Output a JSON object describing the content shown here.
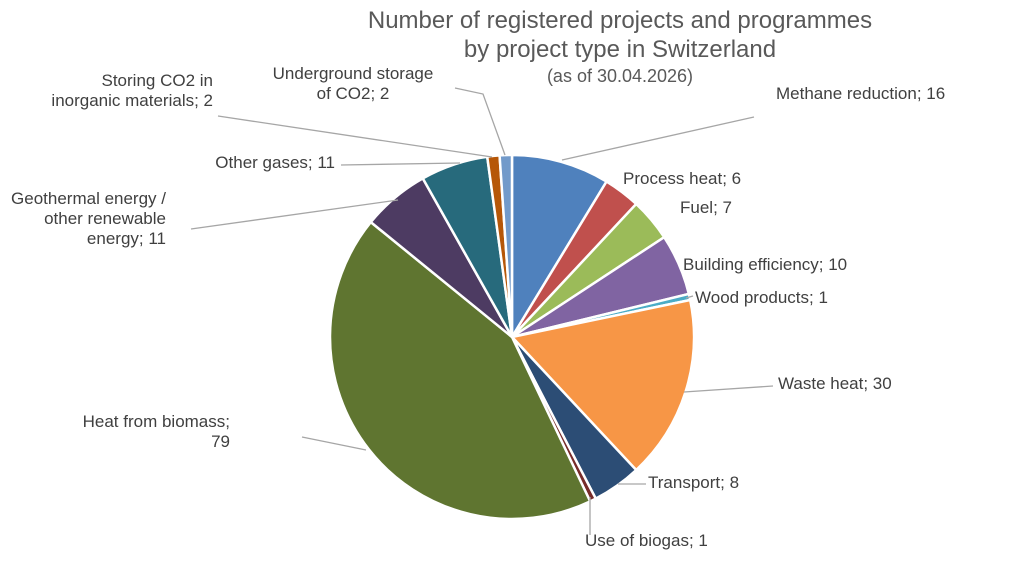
{
  "chart_data": {
    "type": "pie",
    "title": "Number of registered projects and programmes by project type in Switzerland",
    "title_lines": [
      "Number of registered projects and programmes",
      "by project type in Switzerland"
    ],
    "subtitle": "(as of 30.04.2026)",
    "legend": "none (data labels beside slices)",
    "slices": [
      {
        "name": "Methane reduction",
        "value": 16,
        "color": "#4f81bd",
        "label_lines": [
          "Methane reduction; 16"
        ]
      },
      {
        "name": "Process heat",
        "value": 6,
        "color": "#c0504d",
        "label_lines": [
          "Process heat; 6"
        ]
      },
      {
        "name": "Fuel",
        "value": 7,
        "color": "#9bbb59",
        "label_lines": [
          "Fuel; 7"
        ]
      },
      {
        "name": "Building efficiency",
        "value": 10,
        "color": "#8064a2",
        "label_lines": [
          "Building efficiency; 10"
        ]
      },
      {
        "name": "Wood products",
        "value": 1,
        "color": "#4bacc6",
        "label_lines": [
          "Wood products; 1"
        ]
      },
      {
        "name": "Waste heat",
        "value": 30,
        "color": "#f79646",
        "label_lines": [
          "Waste heat; 30"
        ]
      },
      {
        "name": "Transport",
        "value": 8,
        "color": "#2c4d75",
        "label_lines": [
          "Transport; 8"
        ]
      },
      {
        "name": "Use of biogas",
        "value": 1,
        "color": "#772c2a",
        "label_lines": [
          "Use of biogas; 1"
        ]
      },
      {
        "name": "Heat from biomass",
        "value": 79,
        "color": "#5f7530",
        "label_lines": [
          "Heat from biomass;",
          "79"
        ]
      },
      {
        "name": "Geothermal energy / other renewable energy",
        "value": 11,
        "color": "#4d3b62",
        "label_lines": [
          "Geothermal energy /",
          "other renewable",
          "energy; 11"
        ]
      },
      {
        "name": "Other gases",
        "value": 11,
        "color": "#276a7c",
        "label_lines": [
          "Other gases; 11"
        ]
      },
      {
        "name": "Storing CO2 in inorganic materials",
        "value": 2,
        "color": "#b65708",
        "label_lines": [
          "Storing CO2 in",
          "inorganic materials; 2"
        ]
      },
      {
        "name": "Underground storage of CO2",
        "value": 2,
        "color": "#729aca",
        "label_lines": [
          "Underground storage",
          "of CO2; 2"
        ]
      }
    ]
  }
}
